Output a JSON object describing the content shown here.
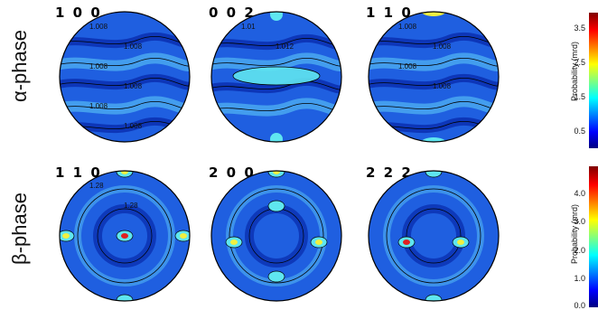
{
  "rows": [
    {
      "phase": "α-phase",
      "figures": [
        {
          "id": "a100",
          "label": "1 0 0",
          "contours": [
            "1.008",
            "1.008",
            "1.008",
            "1.008",
            "1.008",
            "1.008"
          ],
          "style": "alpha-bands"
        },
        {
          "id": "a002",
          "label": "0 0 2",
          "contours": [
            "1.01",
            "1.012"
          ],
          "style": "alpha-ring"
        },
        {
          "id": "a110",
          "label": "1 1 0",
          "contours": [
            "1.008",
            "1.008",
            "1.008",
            "1.008"
          ],
          "style": "alpha-bands"
        }
      ],
      "colorbar": {
        "title": "Probability (mrd)",
        "ticks": [
          "3.5",
          "2.5",
          "1.5",
          "0.5"
        ]
      }
    },
    {
      "phase": "β-phase",
      "figures": [
        {
          "id": "b110",
          "label": "1 1 0",
          "contours": [
            "1.28",
            "1.28"
          ],
          "style": "beta-110"
        },
        {
          "id": "b200",
          "label": "2 0 0",
          "contours": [],
          "style": "beta-200"
        },
        {
          "id": "b222",
          "label": "2 2 2",
          "contours": [],
          "style": "beta-222"
        }
      ],
      "colorbar": {
        "title": "Probability (mrd)",
        "ticks": [
          "4.0",
          "3.0",
          "2.0",
          "1.0",
          "0.0"
        ]
      }
    }
  ],
  "colors": {
    "background_blue": "#1f5fe0",
    "deep_blue": "#0a2fb0",
    "light_blue": "#4aa8f0",
    "cyan": "#5fe6f0",
    "yellow": "#f0f040",
    "red": "#e02020",
    "colormap": "jet"
  }
}
